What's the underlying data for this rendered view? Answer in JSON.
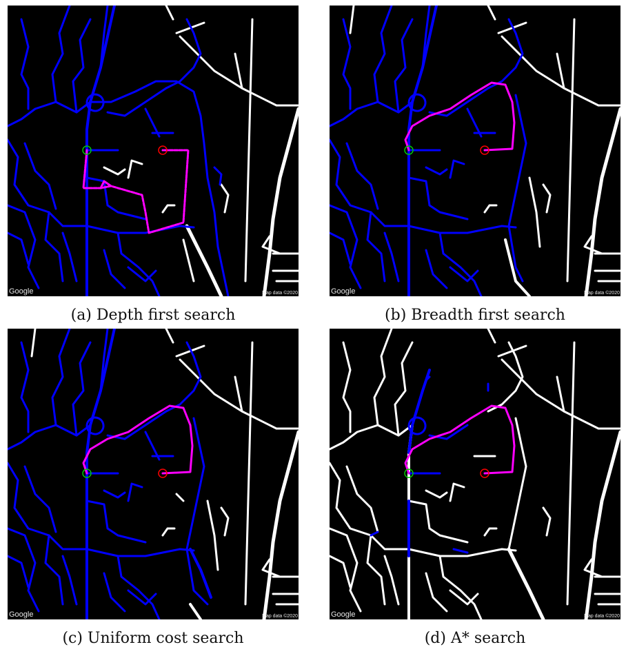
{
  "colors": {
    "background": "#000000",
    "unexplored_road": "#ffffff",
    "explored_road": "#0000ff",
    "path": "#ff00ff",
    "start_marker": "#00cc00",
    "goal_marker": "#ff0000"
  },
  "panels": [
    {
      "caption": "(a) Depth first search",
      "attribution_left": "Google",
      "attribution_right": "Map data ©2020"
    },
    {
      "caption": "(b) Breadth first search",
      "attribution_left": "Google",
      "attribution_right": "Map data ©2020"
    },
    {
      "caption": "(c) Uniform cost search",
      "attribution_left": "Google",
      "attribution_right": "Map data ©2020"
    },
    {
      "caption": "(d) A* search",
      "attribution_left": "Google",
      "attribution_right": "Map data ©2020"
    }
  ]
}
